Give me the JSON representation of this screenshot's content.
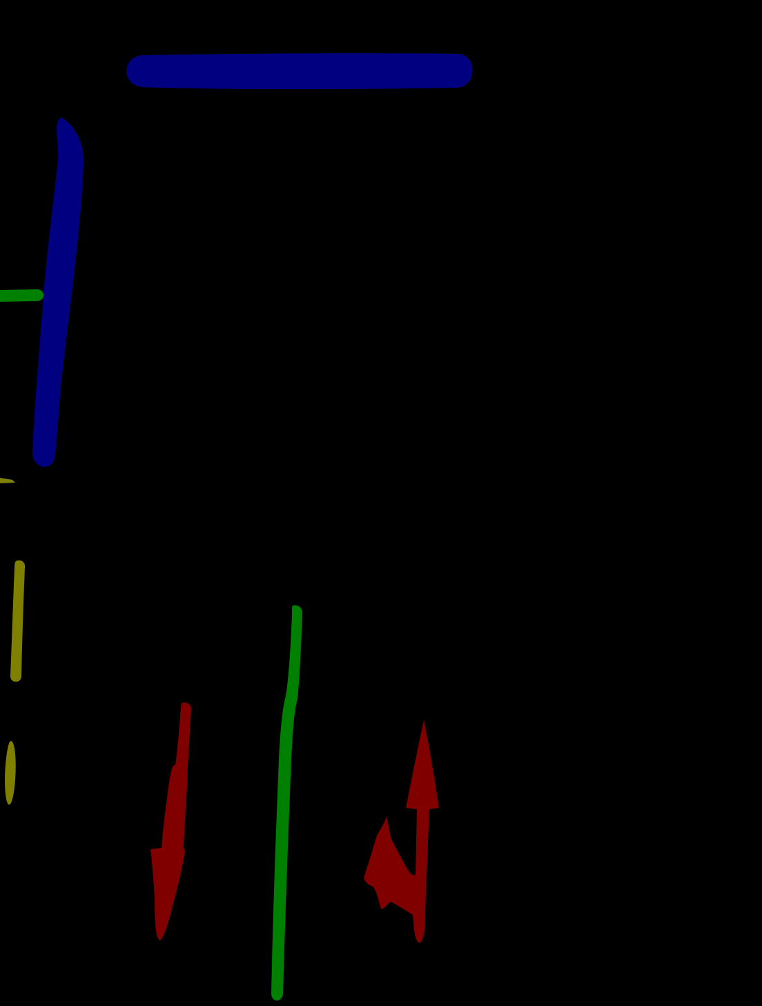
{
  "background_color": "#000000",
  "palette": {
    "blue": "#000080",
    "green": "#008000",
    "olive": "#808000",
    "maroon": "#800000"
  },
  "marks": [
    {
      "name": "blue-horizontal-stroke",
      "kind": "blue-stroke",
      "color_key": "blue"
    },
    {
      "name": "blue-vertical-stroke",
      "kind": "blue-stroke",
      "color_key": "blue"
    },
    {
      "name": "green-short-horizontal-stroke",
      "kind": "green-stroke",
      "color_key": "green"
    },
    {
      "name": "green-long-vertical-stroke",
      "kind": "green-stroke",
      "color_key": "green"
    },
    {
      "name": "olive-tick-mark",
      "kind": "olive-stroke",
      "color_key": "olive"
    },
    {
      "name": "olive-vertical-stroke",
      "kind": "olive-stroke",
      "color_key": "olive"
    },
    {
      "name": "olive-small-oval",
      "kind": "olive-stroke",
      "color_key": "olive"
    },
    {
      "name": "maroon-down-arrow",
      "kind": "maroon-arrow",
      "color_key": "maroon"
    },
    {
      "name": "maroon-up-arrow",
      "kind": "maroon-arrow",
      "color_key": "maroon"
    }
  ]
}
